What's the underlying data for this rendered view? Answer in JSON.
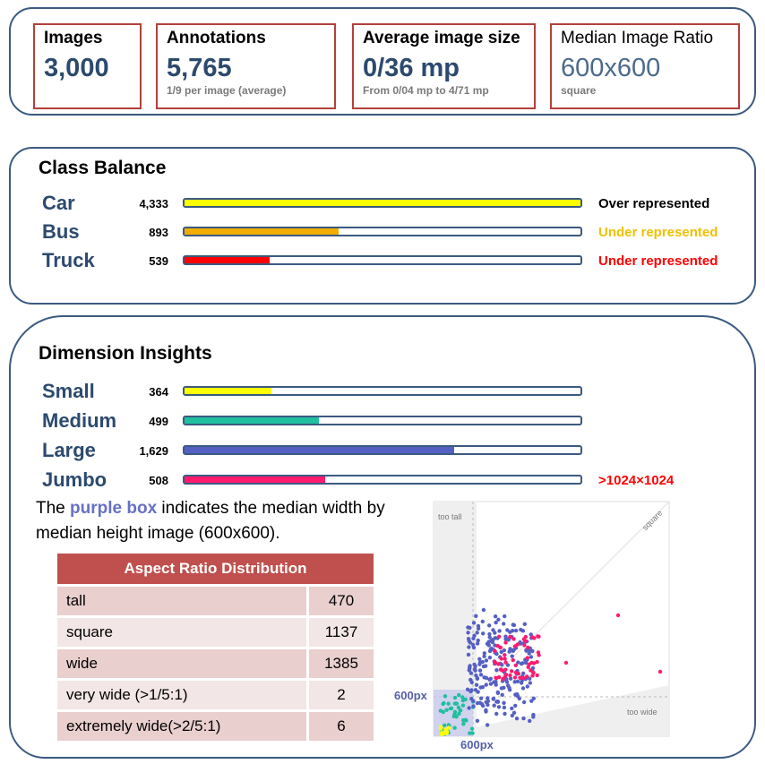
{
  "stats": [
    {
      "label": "Images",
      "value": "3,000",
      "sub": ""
    },
    {
      "label": "Annotations",
      "value": "5,765",
      "sub": "1/9 per image (average)"
    },
    {
      "label": "Average image size",
      "value": "0/36 mp",
      "sub": "From 0/04 mp to 4/71 mp"
    },
    {
      "label": "Median Image Ratio",
      "value": "600x600",
      "sub": "square"
    }
  ],
  "class_balance": {
    "title": "Class Balance",
    "rows": [
      {
        "name": "Car",
        "count": "4,333",
        "fraction": 1.0,
        "color": "#ffff00",
        "note": "Over represented",
        "note_color": "#000000"
      },
      {
        "name": "Bus",
        "count": "893",
        "fraction": 0.39,
        "color": "#f0ad00",
        "note": "Under represented",
        "note_color": "#f0c000"
      },
      {
        "name": "Truck",
        "count": "539",
        "fraction": 0.215,
        "color": "#ff0000",
        "note": "Under represented",
        "note_color": "#ff0000"
      }
    ]
  },
  "dimension": {
    "title": "Dimension Insights",
    "rows": [
      {
        "name": "Small",
        "count": "364",
        "fraction": 0.22,
        "color": "#ffff00",
        "note": ""
      },
      {
        "name": "Medium",
        "count": "499",
        "fraction": 0.34,
        "color": "#1fbf9f",
        "note": ""
      },
      {
        "name": "Large",
        "count": "1,629",
        "fraction": 0.68,
        "color": "#5560c3",
        "note": ""
      },
      {
        "name": "Jumbo",
        "count": "508",
        "fraction": 0.355,
        "color": "#ff1a6e",
        "note": ">1024×1024",
        "note_color": "#ff0000"
      }
    ]
  },
  "description": {
    "before": "The ",
    "highlight": "purple box",
    "after": " indicates the median width by median height image (600x600)."
  },
  "aspect_table": {
    "title": "Aspect Ratio Distribution",
    "rows": [
      {
        "label": "tall",
        "value": "470"
      },
      {
        "label": "square",
        "value": "1137"
      },
      {
        "label": "wide",
        "value": "1385"
      },
      {
        "label": "very wide (>1/5:1)",
        "value": "2"
      },
      {
        "label": "extremely wide(>2/5:1)",
        "value": "6"
      }
    ]
  },
  "scatter": {
    "label_tall": "too tall",
    "label_wide": "too wide",
    "label_square": "square",
    "x_marker": "600px",
    "y_marker": "600px"
  }
}
